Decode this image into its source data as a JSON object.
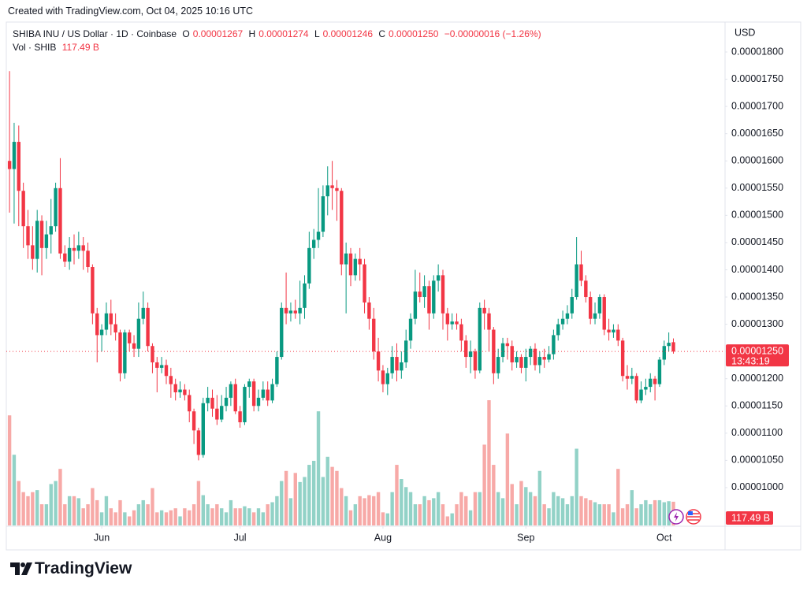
{
  "header": {
    "created": "Created with TradingView.com, Oct 04, 2025 10:16 UTC",
    "symbol": "SHIBA INU / US Dollar · 1D · Coinbase",
    "ohlc_letters": [
      "O",
      "H",
      "L",
      "C"
    ],
    "change": "−0.00000016 (−1.26%)",
    "vol_title": "Vol · SHIB"
  },
  "chart_data": {
    "type": "candlestick",
    "currency": "USD",
    "open": [
      1.6e-05,
      1.585e-05,
      1.635e-05,
      1.545e-05,
      1.48e-05,
      1.445e-05,
      1.42e-05,
      1.49e-05,
      1.44e-05,
      1.465e-05,
      1.48e-05,
      1.55e-05,
      1.43e-05,
      1.415e-05,
      1.44e-05,
      1.435e-05,
      1.445e-05,
      1.435e-05,
      1.405e-05,
      1.32e-05,
      1.28e-05,
      1.29e-05,
      1.32e-05,
      1.3e-05,
      1.285e-05,
      1.21e-05,
      1.285e-05,
      1.265e-05,
      1.255e-05,
      1.31e-05,
      1.33e-05,
      1.26e-05,
      1.23e-05,
      1.22e-05,
      1.225e-05,
      1.205e-05,
      1.19e-05,
      1.175e-05,
      1.18e-05,
      1.17e-05,
      1.14e-05,
      1.105e-05,
      1.06e-05,
      1.155e-05,
      1.165e-05,
      1.145e-05,
      1.125e-05,
      1.15e-05,
      1.165e-05,
      1.19e-05,
      1.14e-05,
      1.12e-05,
      1.185e-05,
      1.195e-05,
      1.15e-05,
      1.165e-05,
      1.18e-05,
      1.16e-05,
      1.19e-05,
      1.24e-05,
      1.33e-05,
      1.32e-05,
      1.325e-05,
      1.32e-05,
      1.33e-05,
      1.375e-05,
      1.44e-05,
      1.455e-05,
      1.47e-05,
      1.535e-05,
      1.555e-05,
      1.55e-05,
      1.545e-05,
      1.41e-05,
      1.43e-05,
      1.39e-05,
      1.42e-05,
      1.41e-05,
      1.34e-05,
      1.31e-05,
      1.25e-05,
      1.215e-05,
      1.19e-05,
      1.21e-05,
      1.24e-05,
      1.215e-05,
      1.23e-05,
      1.27e-05,
      1.31e-05,
      1.36e-05,
      1.35e-05,
      1.37e-05,
      1.32e-05,
      1.38e-05,
      1.39e-05,
      1.32e-05,
      1.3e-05,
      1.305e-05,
      1.3e-05,
      1.27e-05,
      1.24e-05,
      1.25e-05,
      1.215e-05,
      1.33e-05,
      1.32e-05,
      1.29e-05,
      1.21e-05,
      1.24e-05,
      1.265e-05,
      1.26e-05,
      1.23e-05,
      1.24e-05,
      1.22e-05,
      1.24e-05,
      1.255e-05,
      1.225e-05,
      1.24e-05,
      1.235e-05,
      1.245e-05,
      1.28e-05,
      1.3e-05,
      1.31e-05,
      1.32e-05,
      1.35e-05,
      1.41e-05,
      1.38e-05,
      1.35e-05,
      1.31e-05,
      1.32e-05,
      1.35e-05,
      1.29e-05,
      1.285e-05,
      1.29e-05,
      1.27e-05,
      1.205e-05,
      1.2e-05,
      1.205e-05,
      1.16e-05,
      1.18e-05,
      1.185e-05,
      1.2e-05,
      1.19e-05,
      1.235e-05,
      1.26e-05,
      1.267e-05
    ],
    "high": [
      1.765e-05,
      1.67e-05,
      1.665e-05,
      1.56e-05,
      1.51e-05,
      1.48e-05,
      1.51e-05,
      1.5e-05,
      1.49e-05,
      1.53e-05,
      1.56e-05,
      1.605e-05,
      1.445e-05,
      1.46e-05,
      1.465e-05,
      1.47e-05,
      1.46e-05,
      1.45e-05,
      1.41e-05,
      1.33e-05,
      1.3e-05,
      1.34e-05,
      1.345e-05,
      1.32e-05,
      1.29e-05,
      1.29e-05,
      1.29e-05,
      1.28e-05,
      1.34e-05,
      1.36e-05,
      1.34e-05,
      1.265e-05,
      1.24e-05,
      1.24e-05,
      1.235e-05,
      1.22e-05,
      1.2e-05,
      1.195e-05,
      1.19e-05,
      1.18e-05,
      1.145e-05,
      1.11e-05,
      1.165e-05,
      1.185e-05,
      1.18e-05,
      1.17e-05,
      1.17e-05,
      1.185e-05,
      1.195e-05,
      1.2e-05,
      1.15e-05,
      1.19e-05,
      1.2e-05,
      1.2e-05,
      1.18e-05,
      1.195e-05,
      1.195e-05,
      1.2e-05,
      1.25e-05,
      1.34e-05,
      1.395e-05,
      1.34e-05,
      1.345e-05,
      1.38e-05,
      1.39e-05,
      1.47e-05,
      1.475e-05,
      1.55e-05,
      1.555e-05,
      1.59e-05,
      1.6e-05,
      1.565e-05,
      1.55e-05,
      1.45e-05,
      1.44e-05,
      1.43e-05,
      1.44e-05,
      1.42e-05,
      1.35e-05,
      1.33e-05,
      1.275e-05,
      1.225e-05,
      1.22e-05,
      1.26e-05,
      1.265e-05,
      1.25e-05,
      1.29e-05,
      1.32e-05,
      1.4e-05,
      1.395e-05,
      1.39e-05,
      1.38e-05,
      1.39e-05,
      1.41e-05,
      1.4e-05,
      1.33e-05,
      1.32e-05,
      1.32e-05,
      1.31e-05,
      1.28e-05,
      1.27e-05,
      1.255e-05,
      1.34e-05,
      1.345e-05,
      1.33e-05,
      1.295e-05,
      1.255e-05,
      1.275e-05,
      1.275e-05,
      1.27e-05,
      1.25e-05,
      1.245e-05,
      1.255e-05,
      1.26e-05,
      1.265e-05,
      1.25e-05,
      1.255e-05,
      1.26e-05,
      1.29e-05,
      1.31e-05,
      1.325e-05,
      1.335e-05,
      1.365e-05,
      1.46e-05,
      1.435e-05,
      1.39e-05,
      1.36e-05,
      1.34e-05,
      1.355e-05,
      1.355e-05,
      1.31e-05,
      1.3e-05,
      1.3e-05,
      1.275e-05,
      1.225e-05,
      1.22e-05,
      1.21e-05,
      1.195e-05,
      1.2e-05,
      1.21e-05,
      1.205e-05,
      1.24e-05,
      1.27e-05,
      1.285e-05,
      1.274e-05
    ],
    "low": [
      1.505e-05,
      1.485e-05,
      1.48e-05,
      1.44e-05,
      1.42e-05,
      1.4e-05,
      1.395e-05,
      1.39e-05,
      1.42e-05,
      1.43e-05,
      1.47e-05,
      1.42e-05,
      1.405e-05,
      1.4e-05,
      1.41e-05,
      1.42e-05,
      1.4e-05,
      1.395e-05,
      1.3e-05,
      1.23e-05,
      1.25e-05,
      1.28e-05,
      1.28e-05,
      1.27e-05,
      1.195e-05,
      1.2e-05,
      1.25e-05,
      1.24e-05,
      1.24e-05,
      1.3e-05,
      1.25e-05,
      1.21e-05,
      1.175e-05,
      1.21e-05,
      1.19e-05,
      1.165e-05,
      1.16e-05,
      1.165e-05,
      1.16e-05,
      1.12e-05,
      1.08e-05,
      1.05e-05,
      1.055e-05,
      1.14e-05,
      1.13e-05,
      1.115e-05,
      1.12e-05,
      1.14e-05,
      1.15e-05,
      1.135e-05,
      1.11e-05,
      1.115e-05,
      1.165e-05,
      1.14e-05,
      1.14e-05,
      1.16e-05,
      1.15e-05,
      1.155e-05,
      1.185e-05,
      1.235e-05,
      1.3e-05,
      1.305e-05,
      1.31e-05,
      1.3e-05,
      1.31e-05,
      1.365e-05,
      1.42e-05,
      1.44e-05,
      1.46e-05,
      1.5e-05,
      1.51e-05,
      1.49e-05,
      1.39e-05,
      1.32e-05,
      1.37e-05,
      1.38e-05,
      1.38e-05,
      1.32e-05,
      1.29e-05,
      1.235e-05,
      1.195e-05,
      1.175e-05,
      1.17e-05,
      1.2e-05,
      1.195e-05,
      1.2e-05,
      1.22e-05,
      1.255e-05,
      1.3e-05,
      1.34e-05,
      1.33e-05,
      1.29e-05,
      1.31e-05,
      1.36e-05,
      1.29e-05,
      1.27e-05,
      1.29e-05,
      1.29e-05,
      1.25e-05,
      1.22e-05,
      1.21e-05,
      1.2e-05,
      1.21e-05,
      1.29e-05,
      1.25e-05,
      1.19e-05,
      1.2e-05,
      1.23e-05,
      1.235e-05,
      1.215e-05,
      1.22e-05,
      1.21e-05,
      1.195e-05,
      1.225e-05,
      1.215e-05,
      1.21e-05,
      1.22e-05,
      1.23e-05,
      1.235e-05,
      1.27e-05,
      1.29e-05,
      1.3e-05,
      1.31e-05,
      1.345e-05,
      1.37e-05,
      1.34e-05,
      1.3e-05,
      1.3e-05,
      1.31e-05,
      1.28e-05,
      1.27e-05,
      1.275e-05,
      1.26e-05,
      1.195e-05,
      1.18e-05,
      1.19e-05,
      1.155e-05,
      1.155e-05,
      1.17e-05,
      1.175e-05,
      1.16e-05,
      1.185e-05,
      1.225e-05,
      1.25e-05,
      1.246e-05
    ],
    "close": [
      1.585e-05,
      1.635e-05,
      1.545e-05,
      1.48e-05,
      1.445e-05,
      1.42e-05,
      1.49e-05,
      1.44e-05,
      1.465e-05,
      1.48e-05,
      1.55e-05,
      1.43e-05,
      1.415e-05,
      1.44e-05,
      1.435e-05,
      1.445e-05,
      1.435e-05,
      1.405e-05,
      1.32e-05,
      1.28e-05,
      1.29e-05,
      1.32e-05,
      1.3e-05,
      1.285e-05,
      1.21e-05,
      1.285e-05,
      1.265e-05,
      1.255e-05,
      1.31e-05,
      1.33e-05,
      1.26e-05,
      1.23e-05,
      1.22e-05,
      1.225e-05,
      1.205e-05,
      1.19e-05,
      1.175e-05,
      1.18e-05,
      1.17e-05,
      1.14e-05,
      1.105e-05,
      1.06e-05,
      1.155e-05,
      1.165e-05,
      1.145e-05,
      1.125e-05,
      1.15e-05,
      1.165e-05,
      1.19e-05,
      1.14e-05,
      1.12e-05,
      1.185e-05,
      1.195e-05,
      1.15e-05,
      1.165e-05,
      1.18e-05,
      1.16e-05,
      1.19e-05,
      1.24e-05,
      1.33e-05,
      1.32e-05,
      1.325e-05,
      1.32e-05,
      1.33e-05,
      1.375e-05,
      1.44e-05,
      1.455e-05,
      1.47e-05,
      1.535e-05,
      1.555e-05,
      1.55e-05,
      1.545e-05,
      1.41e-05,
      1.43e-05,
      1.39e-05,
      1.42e-05,
      1.41e-05,
      1.34e-05,
      1.31e-05,
      1.25e-05,
      1.215e-05,
      1.19e-05,
      1.21e-05,
      1.24e-05,
      1.215e-05,
      1.23e-05,
      1.27e-05,
      1.31e-05,
      1.36e-05,
      1.35e-05,
      1.37e-05,
      1.32e-05,
      1.38e-05,
      1.39e-05,
      1.32e-05,
      1.3e-05,
      1.305e-05,
      1.3e-05,
      1.27e-05,
      1.24e-05,
      1.25e-05,
      1.215e-05,
      1.33e-05,
      1.32e-05,
      1.29e-05,
      1.21e-05,
      1.24e-05,
      1.265e-05,
      1.26e-05,
      1.23e-05,
      1.24e-05,
      1.22e-05,
      1.24e-05,
      1.255e-05,
      1.225e-05,
      1.24e-05,
      1.235e-05,
      1.245e-05,
      1.28e-05,
      1.3e-05,
      1.31e-05,
      1.32e-05,
      1.35e-05,
      1.41e-05,
      1.38e-05,
      1.35e-05,
      1.31e-05,
      1.32e-05,
      1.35e-05,
      1.29e-05,
      1.285e-05,
      1.29e-05,
      1.27e-05,
      1.205e-05,
      1.2e-05,
      1.205e-05,
      1.16e-05,
      1.18e-05,
      1.185e-05,
      1.2e-05,
      1.19e-05,
      1.235e-05,
      1.26e-05,
      1.266e-05,
      1.25e-05
    ],
    "volume": [
      545,
      350,
      220,
      165,
      145,
      165,
      175,
      105,
      105,
      205,
      220,
      280,
      105,
      145,
      145,
      135,
      85,
      105,
      185,
      125,
      65,
      145,
      85,
      65,
      125,
      65,
      45,
      75,
      105,
      125,
      105,
      185,
      65,
      75,
      65,
      75,
      85,
      45,
      85,
      75,
      105,
      220,
      150,
      105,
      85,
      105,
      85,
      65,
      125,
      85,
      85,
      95,
      85,
      65,
      85,
      65,
      105,
      115,
      145,
      220,
      270,
      135,
      260,
      215,
      240,
      300,
      320,
      565,
      240,
      340,
      290,
      270,
      185,
      145,
      75,
      105,
      145,
      135,
      150,
      145,
      165,
      65,
      60,
      165,
      300,
      230,
      190,
      165,
      105,
      105,
      145,
      125,
      135,
      165,
      105,
      45,
      60,
      105,
      165,
      145,
      75,
      165,
      165,
      400,
      620,
      300,
      165,
      135,
      455,
      205,
      105,
      220,
      190,
      165,
      145,
      270,
      105,
      85,
      165,
      145,
      135,
      105,
      145,
      380,
      145,
      135,
      125,
      115,
      105,
      105,
      105,
      65,
      280,
      85,
      105,
      175,
      85,
      105,
      125,
      105,
      125,
      125,
      115,
      120,
      117.49
    ],
    "value_labels": {
      "open": "0.00001267",
      "high": "0.00001274",
      "low": "0.00001246",
      "close": "0.00001250",
      "volume": "117.49 B"
    },
    "countdown": "13:43:19",
    "xlim": [
      -0.7,
      155.2
    ],
    "xticks": [
      {
        "value": 20,
        "label": "Jun"
      },
      {
        "value": 50,
        "label": "Jul"
      },
      {
        "value": 81,
        "label": "Aug"
      },
      {
        "value": 112,
        "label": "Sep"
      },
      {
        "value": 142,
        "label": "Oct"
      }
    ],
    "ylim": [
      9.29e-06,
      1.855e-05
    ],
    "yticks": [
      {
        "value": 1e-05,
        "label": "0.00001000"
      },
      {
        "value": 1.05e-05,
        "label": "0.00001050"
      },
      {
        "value": 1.1e-05,
        "label": "0.00001100"
      },
      {
        "value": 1.15e-05,
        "label": "0.00001150"
      },
      {
        "value": 1.2e-05,
        "label": "0.00001200"
      },
      {
        "value": 1.25e-05,
        "label": "0.00001250"
      },
      {
        "value": 1.3e-05,
        "label": "0.00001300"
      },
      {
        "value": 1.35e-05,
        "label": "0.00001350"
      },
      {
        "value": 1.4e-05,
        "label": "0.00001400"
      },
      {
        "value": 1.45e-05,
        "label": "0.00001450"
      },
      {
        "value": 1.5e-05,
        "label": "0.00001500"
      },
      {
        "value": 1.55e-05,
        "label": "0.00001550"
      },
      {
        "value": 1.6e-05,
        "label": "0.00001600"
      },
      {
        "value": 1.65e-05,
        "label": "0.00001650"
      },
      {
        "value": 1.7e-05,
        "label": "0.00001700"
      },
      {
        "value": 1.75e-05,
        "label": "0.00001750"
      },
      {
        "value": 1.8e-05,
        "label": "0.00001800"
      }
    ],
    "grid": false,
    "up_color": "#089981",
    "down_color": "#f23645",
    "volume_up_color": "#92d2c7",
    "volume_down_color": "#f7a9a7"
  },
  "footer": {
    "logo": "TradingView"
  }
}
